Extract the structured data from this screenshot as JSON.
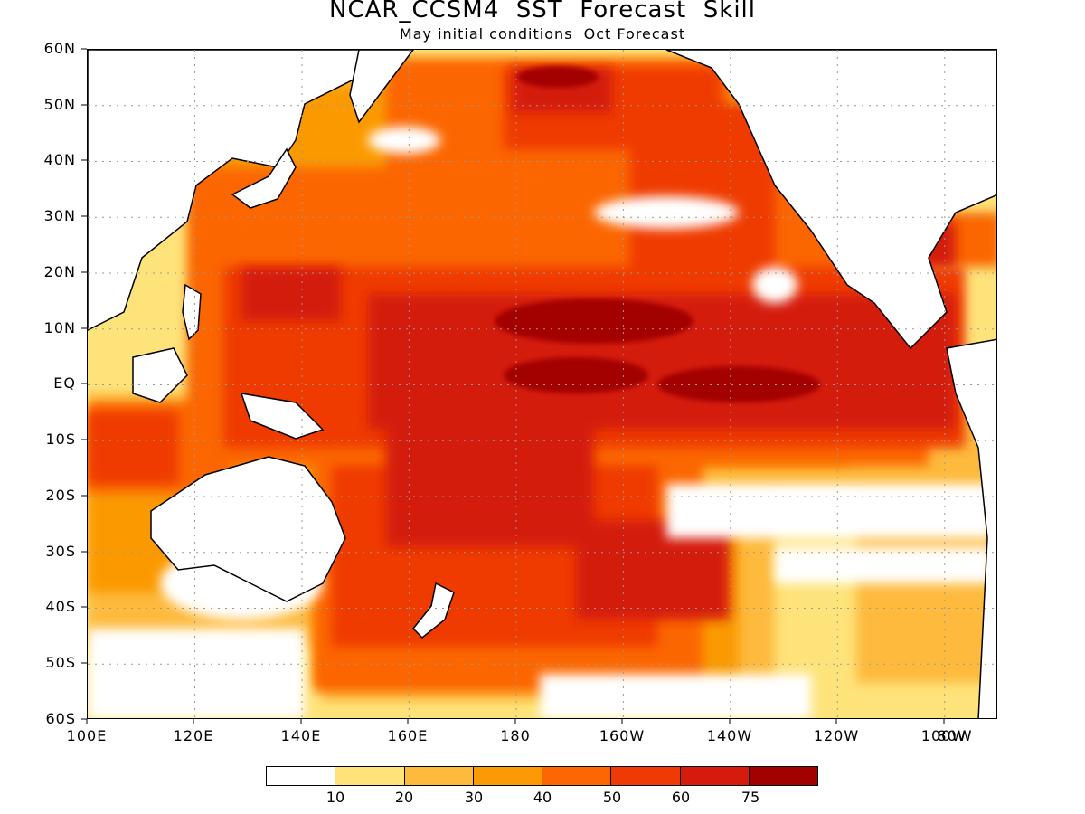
{
  "title": "NCAR_CCSM4  SST  Forecast  Skill",
  "subtitle": "May initial conditions  Oct Forecast",
  "map": {
    "projection": "cylindrical equidistant",
    "lon_range": [
      "100E",
      "70W"
    ],
    "lat_range": [
      "60S",
      "60N"
    ],
    "grid": "dotted",
    "lat_labels": [
      "60N",
      "50N",
      "40N",
      "30N",
      "20N",
      "10N",
      "EQ",
      "10S",
      "20S",
      "30S",
      "40S",
      "50S",
      "60S"
    ],
    "lon_labels": [
      "100E",
      "120E",
      "140E",
      "160E",
      "180",
      "160W",
      "140W",
      "120W",
      "100W",
      "80W"
    ],
    "colors": {
      "land": "#ffffff",
      "coastline": "#000000",
      "gridline": "#999999"
    }
  },
  "legend": {
    "colors": [
      "#ffffff",
      "#fee37a",
      "#fdba3c",
      "#fb9a05",
      "#fb6602",
      "#ef3a06",
      "#d41b0d",
      "#a30100"
    ],
    "labels": [
      "10",
      "20",
      "30",
      "40",
      "50",
      "60",
      "75"
    ]
  }
}
